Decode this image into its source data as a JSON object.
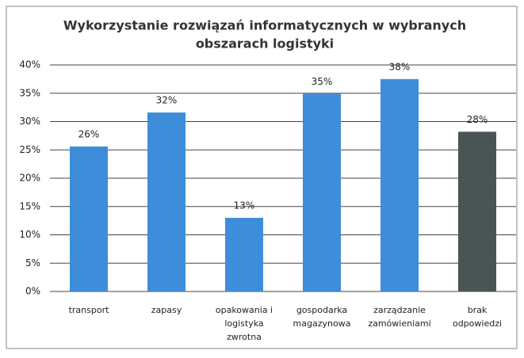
{
  "chart_data": {
    "type": "bar",
    "title": [
      "Wykorzystanie rozwiązań informatycznych w wybranych",
      "obszarach logistyki"
    ],
    "categories": [
      [
        "transport"
      ],
      [
        "zapasy"
      ],
      [
        "opakowania i",
        "logistyka",
        "zwrotna"
      ],
      [
        "gospodarka",
        "magazynowa"
      ],
      [
        "zarządzanie",
        "zamówieniami"
      ],
      [
        "brak",
        "odpowiedzi"
      ]
    ],
    "values": [
      25.6,
      31.6,
      13,
      34.9,
      37.5,
      28.2
    ],
    "value_labels": [
      "26%",
      "32%",
      "13%",
      "35%",
      "38%",
      "28%"
    ],
    "colors": [
      "#3d8ddb",
      "#3d8ddb",
      "#3d8ddb",
      "#3d8ddb",
      "#3d8ddb",
      "#4b5455"
    ],
    "ylim": [
      0,
      40
    ],
    "yticks": [
      {
        "value": 0,
        "label": "0%"
      },
      {
        "value": 5,
        "label": "5%"
      },
      {
        "value": 10,
        "label": "10%"
      },
      {
        "value": 15,
        "label": "15%"
      },
      {
        "value": 20,
        "label": "20%"
      },
      {
        "value": 25,
        "label": "25%"
      },
      {
        "value": 30,
        "label": "30%"
      },
      {
        "value": 35,
        "label": "35%"
      },
      {
        "value": 40,
        "label": "40%"
      }
    ],
    "grid": true
  }
}
